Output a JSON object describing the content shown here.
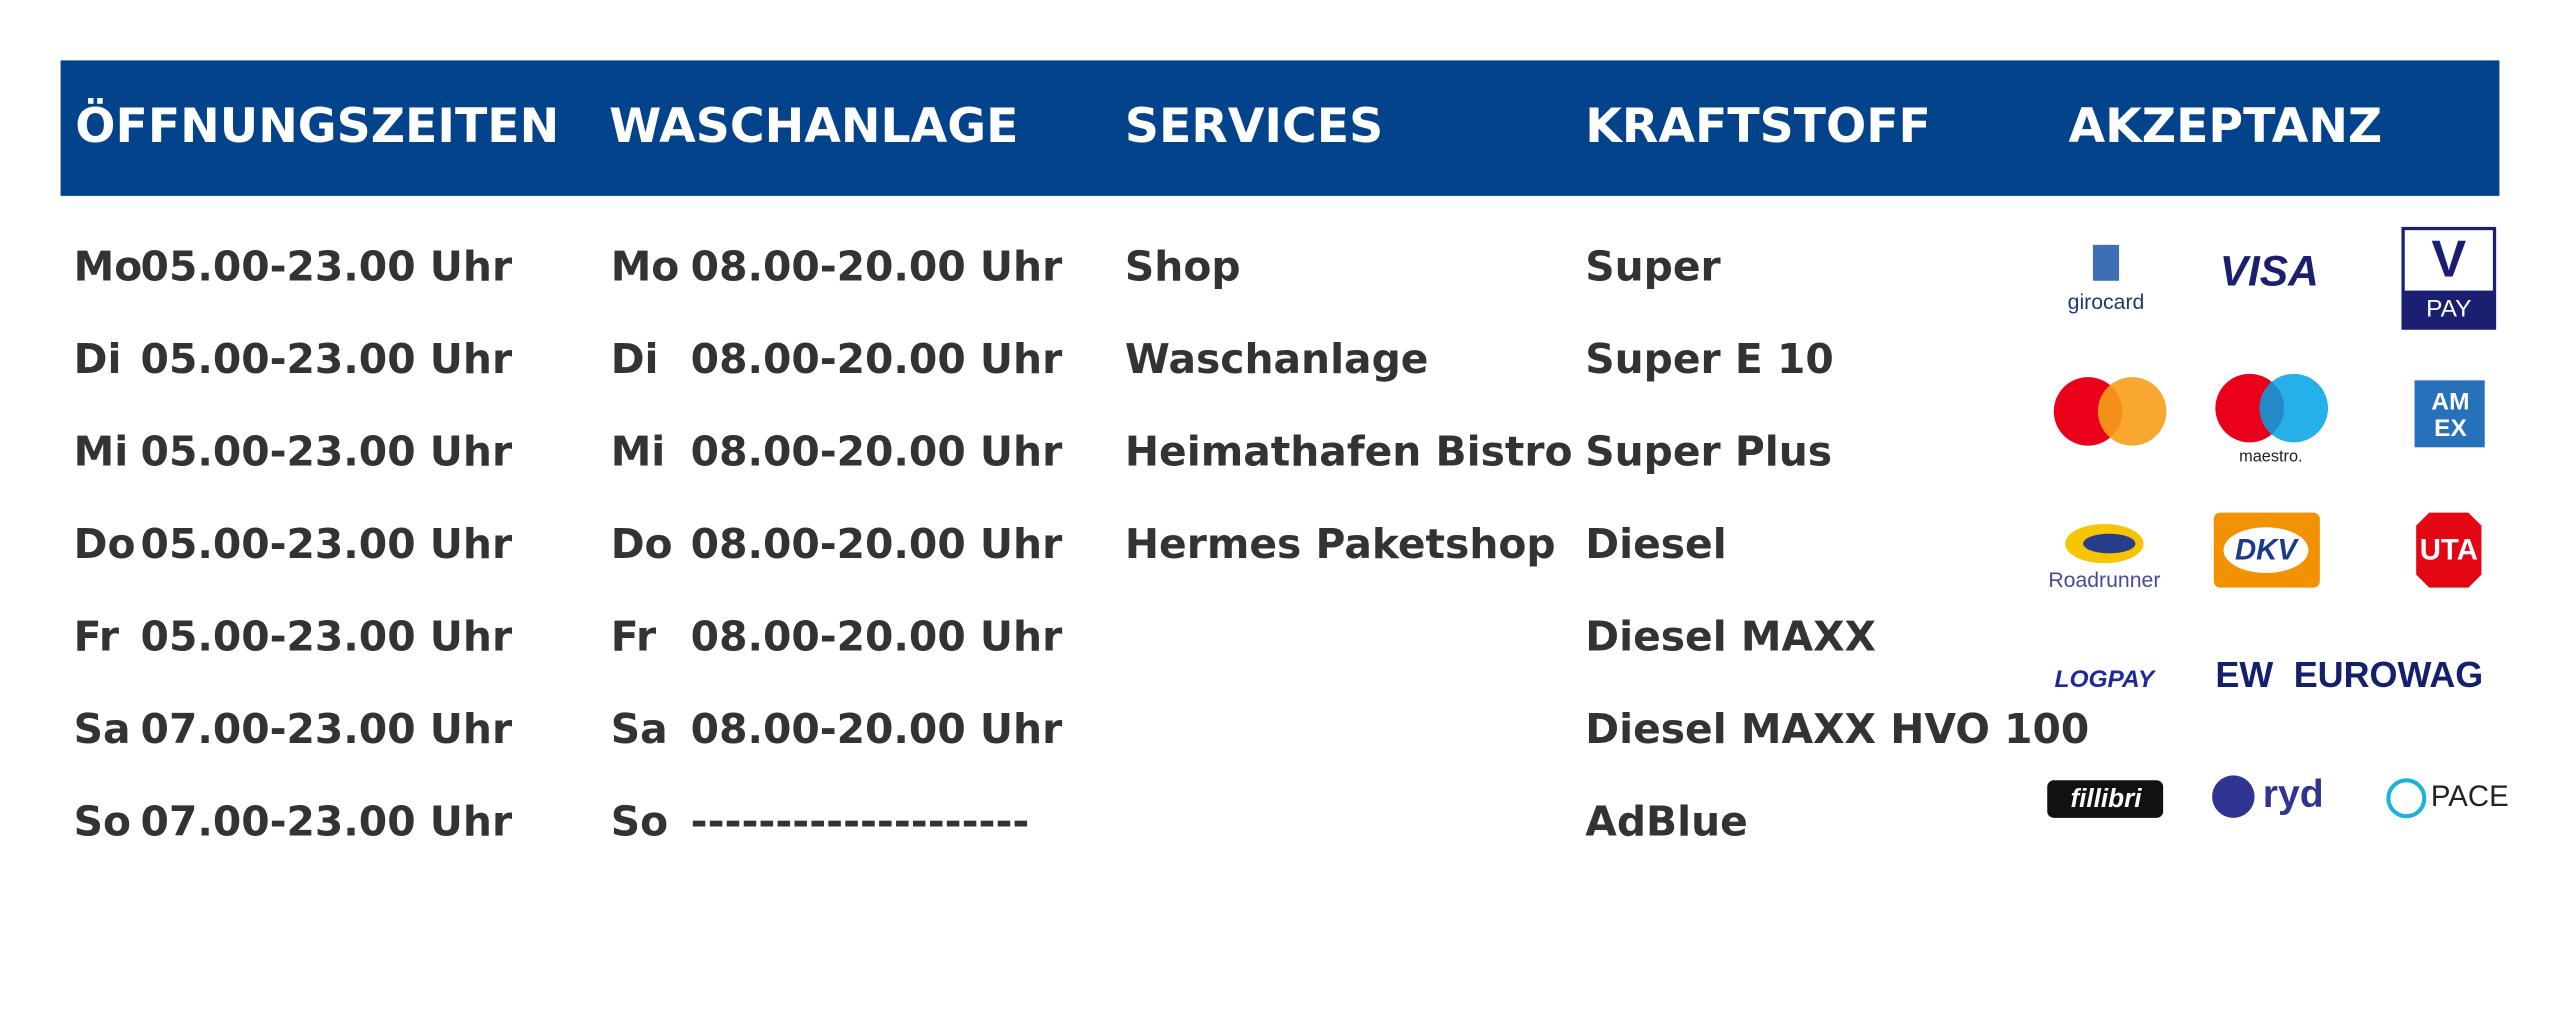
{
  "hours": {
    "title": "ÖFFNUNGSZEITEN",
    "rows": [
      [
        "Mo",
        "05.00-23.00 Uhr"
      ],
      [
        "Di",
        "05.00-23.00 Uhr"
      ],
      [
        "Mi",
        "05.00-23.00 Uhr"
      ],
      [
        "Do",
        "05.00-23.00 Uhr"
      ],
      [
        "Fr",
        "05.00-23.00 Uhr"
      ],
      [
        "Sa",
        "07.00-23.00 Uhr"
      ],
      [
        "So",
        "07.00-23.00 Uhr"
      ]
    ]
  },
  "carwash": {
    "title": "WASCHANLAGE",
    "rows": [
      [
        "Mo",
        "08.00-20.00 Uhr"
      ],
      [
        "Di",
        "08.00-20.00 Uhr"
      ],
      [
        "Mi",
        "08.00-20.00 Uhr"
      ],
      [
        "Do",
        "08.00-20.00 Uhr"
      ],
      [
        "Fr",
        "08.00-20.00 Uhr"
      ],
      [
        "Sa",
        "08.00-20.00 Uhr"
      ],
      [
        "So",
        "--------------------"
      ]
    ]
  },
  "services": {
    "title": "SERVICES",
    "items": [
      "Shop",
      "Waschanlage",
      "Heimathafen Bistro",
      "Hermes Paketshop"
    ]
  },
  "fuel": {
    "title": "KRAFTSTOFF",
    "items": [
      "Super",
      "Super E 10",
      "Super Plus",
      "Diesel",
      "Diesel MAXX",
      "Diesel MAXX HVO 100",
      "AdBlue"
    ]
  },
  "acceptance": {
    "title": "AKZEPTANZ",
    "logos": [
      "girocard",
      "VISA",
      "V",
      "PAY",
      "maestro.",
      "AM",
      "EX",
      "Roadrunner",
      "DKV",
      "UTA",
      "LOGPAY",
      "EW",
      "EUROWAG",
      "fillibri",
      "ryd",
      "PACE"
    ]
  }
}
